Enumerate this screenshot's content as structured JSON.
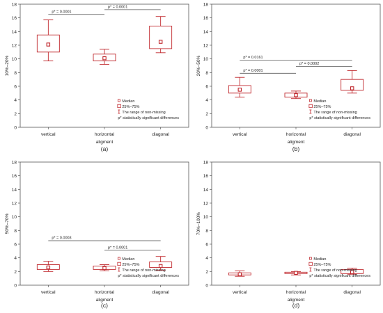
{
  "colors": {
    "box": "#c0282d",
    "axis": "#555555",
    "text": "#222222"
  },
  "chart_data": [
    {
      "panel_label": "(a)",
      "type": "box",
      "xlabel": "aligment",
      "ylabel": "10%–20%",
      "ylim": [
        0,
        18
      ],
      "yticks": [
        "0",
        "2",
        "4",
        "6",
        "8",
        "10",
        "12",
        "14",
        "16",
        "18"
      ],
      "categories": [
        "vertical",
        "horizontal",
        "diagonal"
      ],
      "boxes": [
        {
          "median": 12.1,
          "q1": 11.0,
          "q3": 13.5,
          "min": 9.7,
          "max": 15.7
        },
        {
          "median": 10.1,
          "q1": 9.7,
          "q3": 10.7,
          "min": 9.2,
          "max": 11.4
        },
        {
          "median": 12.5,
          "q1": 11.5,
          "q3": 14.8,
          "min": 10.9,
          "max": 16.2
        }
      ],
      "significance": [
        {
          "label": "p* = 0.0001",
          "from": 0,
          "to": 1,
          "y": 16.5
        },
        {
          "label": "p* = 0.0001",
          "from": 1,
          "to": 2,
          "y": 17.2
        }
      ],
      "legend": {
        "position": "bottom-right",
        "items": [
          "Median",
          "25%–75%",
          "The range of non-missing",
          "p* statistically significant differences"
        ]
      }
    },
    {
      "panel_label": "(b)",
      "type": "box",
      "xlabel": "aligment",
      "ylabel": "20%–50%",
      "ylim": [
        0,
        18
      ],
      "yticks": [
        "0",
        "2",
        "4",
        "6",
        "8",
        "10",
        "12",
        "14",
        "16",
        "18"
      ],
      "categories": [
        "vertical",
        "horizontal",
        "diagonal"
      ],
      "boxes": [
        {
          "median": 5.5,
          "q1": 5.0,
          "q3": 6.1,
          "min": 4.4,
          "max": 7.3
        },
        {
          "median": 4.7,
          "q1": 4.4,
          "q3": 5.0,
          "min": 4.2,
          "max": 5.3
        },
        {
          "median": 5.7,
          "q1": 5.4,
          "q3": 7.0,
          "min": 5.0,
          "max": 8.3
        }
      ],
      "significance": [
        {
          "label": "p* = 0.0161",
          "from": 0,
          "to": 2,
          "y": 9.8
        },
        {
          "label": "p* = 0.0001",
          "from": 0,
          "to": 1,
          "y": 7.9
        },
        {
          "label": "p* = 0.0002",
          "from": 1,
          "to": 2,
          "y": 8.9
        }
      ],
      "legend": {
        "position": "bottom-right",
        "items": [
          "Median",
          "25%–75%",
          "The range of non-missing",
          "p* statistically significant differences"
        ]
      }
    },
    {
      "panel_label": "(c)",
      "type": "box",
      "xlabel": "aligment",
      "ylabel": "50%–70%",
      "ylim": [
        0,
        18
      ],
      "yticks": [
        "0",
        "2",
        "4",
        "6",
        "8",
        "10",
        "12",
        "14",
        "16",
        "18"
      ],
      "categories": [
        "vertical",
        "horizontal",
        "diagonal"
      ],
      "boxes": [
        {
          "median": 2.6,
          "q1": 2.3,
          "q3": 3.0,
          "min": 2.0,
          "max": 3.5
        },
        {
          "median": 2.5,
          "q1": 2.3,
          "q3": 2.8,
          "min": 2.1,
          "max": 3.0
        },
        {
          "median": 2.8,
          "q1": 2.6,
          "q3": 3.4,
          "min": 2.2,
          "max": 4.2
        }
      ],
      "significance": [
        {
          "label": "p* = 0.0003",
          "from": 0,
          "to": 2,
          "y": 6.5
        },
        {
          "label": "p* = 0.0001",
          "from": 1,
          "to": 2,
          "y": 5.1
        }
      ],
      "legend": {
        "position": "bottom-right",
        "items": [
          "Median",
          "25%–75%",
          "The range of non-missing",
          "p* statistically significant differences"
        ]
      }
    },
    {
      "panel_label": "(d)",
      "type": "box",
      "xlabel": "aligment",
      "ylabel": "70%–100%",
      "ylim": [
        0,
        18
      ],
      "yticks": [
        "0",
        "2",
        "4",
        "6",
        "8",
        "10",
        "12",
        "14",
        "16",
        "18"
      ],
      "categories": [
        "vertical",
        "horizontal",
        "diagonal"
      ],
      "boxes": [
        {
          "median": 1.6,
          "q1": 1.5,
          "q3": 1.8,
          "min": 1.3,
          "max": 2.1
        },
        {
          "median": 1.8,
          "q1": 1.7,
          "q3": 1.9,
          "min": 1.5,
          "max": 2.0
        },
        {
          "median": 1.9,
          "q1": 1.7,
          "q3": 2.3,
          "min": 1.6,
          "max": 2.5
        }
      ],
      "significance": [],
      "legend": {
        "position": "bottom-right",
        "items": [
          "Median",
          "25%–75%",
          "The range of non-missing",
          "p* statistically significant differences"
        ]
      }
    }
  ]
}
